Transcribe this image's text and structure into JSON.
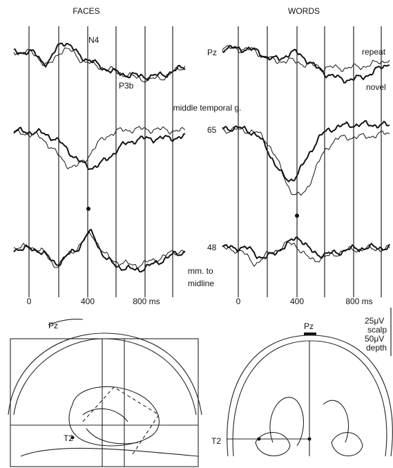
{
  "headers": [
    "FACES",
    "WORDS"
  ],
  "top_panel": {
    "peak_labels": [
      "N4",
      "P3b"
    ],
    "electrode": "Pz",
    "legend": [
      "repeat",
      "novel"
    ]
  },
  "section_title": "middle temporal g.",
  "depth_labels": [
    "65",
    "48"
  ],
  "depth_note": [
    "mm. to",
    "midline"
  ],
  "time_axes": [
    [
      "0",
      "400",
      "800 ms"
    ],
    [
      "0",
      "400",
      "800 ms"
    ]
  ],
  "scale": [
    "25μV",
    "scalp",
    "50μV",
    "depth"
  ],
  "brain_views": [
    {
      "electrodes": [
        "Pz",
        "T2"
      ]
    },
    {
      "electrodes": [
        "Pz",
        "T2"
      ]
    }
  ]
}
